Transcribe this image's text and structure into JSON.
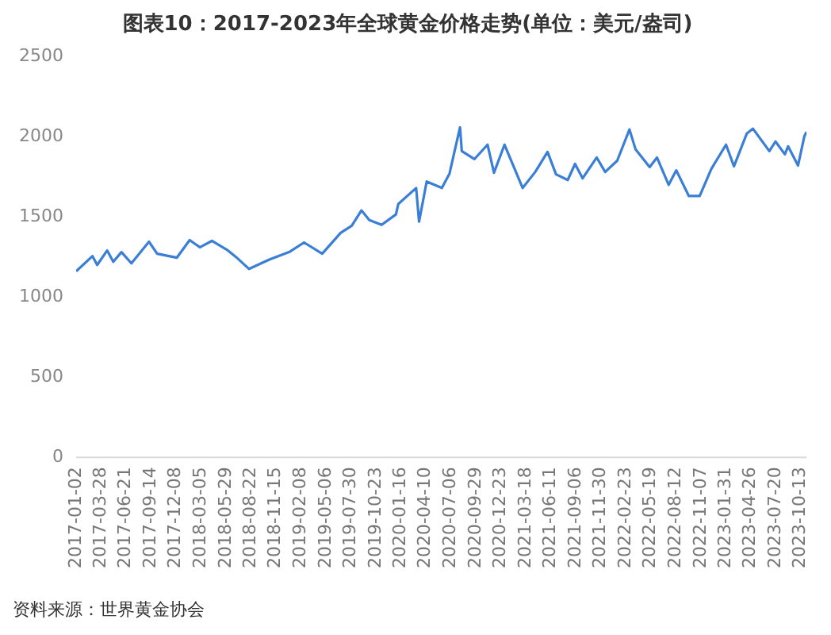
{
  "chart_data": {
    "type": "line",
    "title": "图表10：2017-2023年全球黄金价格走势(单位：美元/盎司)",
    "annotations": [
      "资料来源：世界黄金协会"
    ],
    "series": [
      {
        "color": "#3a7fd5",
        "x": [
          "2017-01-02",
          "2017-02-27",
          "2017-03-15",
          "2017-04-18",
          "2017-05-09",
          "2017-06-06",
          "2017-07-10",
          "2017-09-08",
          "2017-10-06",
          "2017-12-12",
          "2018-01-25",
          "2018-03-01",
          "2018-04-11",
          "2018-06-01",
          "2018-07-02",
          "2018-08-16",
          "2018-10-26",
          "2018-12-31",
          "2019-02-20",
          "2019-04-23",
          "2019-06-25",
          "2019-08-02",
          "2019-09-04",
          "2019-10-01",
          "2019-11-12",
          "2019-12-31",
          "2020-01-08",
          "2020-03-09",
          "2020-03-19",
          "2020-04-14",
          "2020-06-05",
          "2020-07-01",
          "2020-08-06",
          "2020-08-12",
          "2020-09-24",
          "2020-11-08",
          "2020-11-30",
          "2021-01-05",
          "2021-03-08",
          "2021-04-20",
          "2021-06-01",
          "2021-06-30",
          "2021-08-09",
          "2021-09-03",
          "2021-09-29",
          "2021-11-16",
          "2021-12-15",
          "2022-01-25",
          "2022-03-08",
          "2022-03-29",
          "2022-05-16",
          "2022-06-10",
          "2022-07-20",
          "2022-08-15",
          "2022-09-27",
          "2022-11-03",
          "2022-12-13",
          "2023-02-01",
          "2023-02-28",
          "2023-04-13",
          "2023-05-04",
          "2023-06-29",
          "2023-07-20",
          "2023-08-21",
          "2023-09-01",
          "2023-10-05",
          "2023-10-27",
          "2023-11-03"
        ],
        "values": [
          1160,
          1255,
          1200,
          1290,
          1220,
          1280,
          1210,
          1345,
          1270,
          1245,
          1355,
          1310,
          1350,
          1295,
          1250,
          1175,
          1235,
          1280,
          1340,
          1270,
          1400,
          1445,
          1540,
          1480,
          1450,
          1515,
          1580,
          1680,
          1470,
          1720,
          1680,
          1770,
          2058,
          1910,
          1860,
          1950,
          1775,
          1950,
          1680,
          1780,
          1905,
          1765,
          1730,
          1830,
          1740,
          1870,
          1780,
          1850,
          2045,
          1920,
          1810,
          1870,
          1700,
          1790,
          1630,
          1630,
          1800,
          1950,
          1815,
          2020,
          2050,
          1910,
          1970,
          1890,
          1940,
          1820,
          2005,
          2030
        ]
      }
    ],
    "xlim": [
      "2017-01-02",
      "2023-11-03"
    ],
    "xticks": [
      "2017-01-02",
      "2017-03-28",
      "2017-06-21",
      "2017-09-14",
      "2017-12-08",
      "2018-03-05",
      "2018-05-29",
      "2018-08-22",
      "2018-11-15",
      "2019-02-08",
      "2019-05-06",
      "2019-07-30",
      "2019-10-23",
      "2020-01-16",
      "2020-04-10",
      "2020-07-06",
      "2020-09-29",
      "2020-12-23",
      "2021-03-18",
      "2021-06-11",
      "2021-09-06",
      "2021-11-30",
      "2022-02-23",
      "2022-05-19",
      "2022-08-12",
      "2022-11-07",
      "2023-01-31",
      "2023-04-26",
      "2023-07-20",
      "2023-10-13"
    ],
    "ylim": [
      0,
      2500
    ],
    "yticks": [
      0,
      500,
      1000,
      1500,
      2000,
      2500
    ],
    "grid": false,
    "legend": false,
    "marker": "none",
    "line_style": "solid"
  }
}
